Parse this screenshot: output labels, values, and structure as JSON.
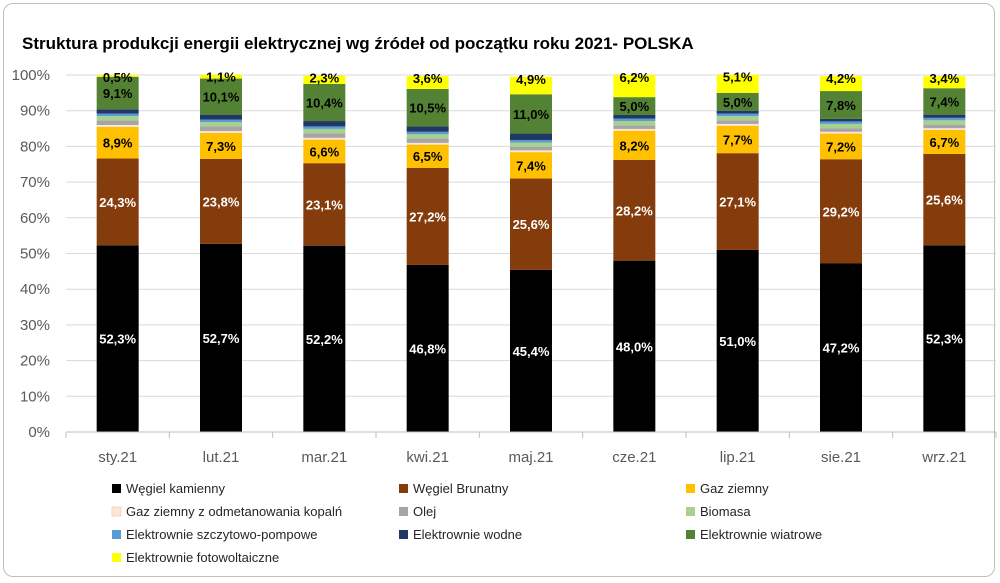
{
  "chart_data": {
    "type": "bar",
    "stacked": true,
    "title": "Struktura produkcji energii elektrycznej wg źródeł od początku roku 2021- POLSKA",
    "xlabel": "",
    "ylabel": "",
    "ylim": [
      0,
      100
    ],
    "y_ticks": [
      "0%",
      "10%",
      "20%",
      "30%",
      "40%",
      "50%",
      "60%",
      "70%",
      "80%",
      "90%",
      "100%"
    ],
    "grid": true,
    "legend_position": "bottom",
    "categories": [
      "sty.21",
      "lut.21",
      "mar.21",
      "kwi.21",
      "maj.21",
      "cze.21",
      "lip.21",
      "sie.21",
      "wrz.21"
    ],
    "series": [
      {
        "name": "Węgiel kamienny",
        "color": "#000000",
        "label_color": "#ffffff",
        "show_labels": true,
        "values": [
          52.3,
          52.7,
          52.2,
          46.8,
          45.4,
          48.0,
          51.0,
          47.2,
          52.3
        ],
        "labels": [
          "52,3%",
          "52,7%",
          "52,2%",
          "46,8%",
          "45,4%",
          "48,0%",
          "51,0%",
          "47,2%",
          "52,3%"
        ]
      },
      {
        "name": "Węgiel Brunatny",
        "color": "#843c0c",
        "label_color": "#ffffff",
        "show_labels": true,
        "values": [
          24.3,
          23.8,
          23.1,
          27.2,
          25.6,
          28.2,
          27.1,
          29.2,
          25.6
        ],
        "labels": [
          "24,3%",
          "23,8%",
          "23,1%",
          "27,2%",
          "25,6%",
          "28,2%",
          "27,1%",
          "29,2%",
          "25,6%"
        ]
      },
      {
        "name": "Gaz  ziemny",
        "color": "#ffc000",
        "label_color": "#000000",
        "show_labels": true,
        "values": [
          8.9,
          7.3,
          6.6,
          6.5,
          7.4,
          8.2,
          7.7,
          7.2,
          6.7
        ],
        "labels": [
          "8,9%",
          "7,3%",
          "6,6%",
          "6,5%",
          "7,4%",
          "8,2%",
          "7,7%",
          "7,2%",
          "6,7%"
        ]
      },
      {
        "name": "Gaz ziemny z odmetanowania kopalń",
        "color": "#fbe5d6",
        "show_labels": false,
        "values": [
          0.5,
          0.5,
          0.5,
          0.5,
          0.5,
          0.5,
          0.5,
          0.5,
          0.5
        ]
      },
      {
        "name": "Olej",
        "color": "#a5a5a5",
        "show_labels": false,
        "values": [
          1.3,
          1.3,
          1.3,
          1.2,
          1.0,
          1.0,
          1.0,
          1.0,
          1.0
        ]
      },
      {
        "name": "Biomasa",
        "color": "#a9d18e",
        "show_labels": false,
        "values": [
          1.2,
          1.2,
          1.2,
          1.2,
          1.2,
          1.2,
          1.2,
          1.2,
          1.2
        ]
      },
      {
        "name": "Elektrownie szczytowo-pompowe",
        "color": "#5b9bd5",
        "show_labels": false,
        "values": [
          0.7,
          0.7,
          0.7,
          0.7,
          0.7,
          0.7,
          0.7,
          0.7,
          0.7
        ]
      },
      {
        "name": "Elektrownie wodne",
        "color": "#1f3864",
        "show_labels": false,
        "values": [
          1.2,
          1.4,
          1.5,
          1.5,
          1.8,
          1.0,
          0.8,
          0.7,
          0.9
        ]
      },
      {
        "name": "Elektrownie wiatrowe",
        "color": "#548235",
        "label_color": "#000000",
        "show_labels": true,
        "values": [
          9.1,
          10.1,
          10.4,
          10.5,
          11.0,
          5.0,
          5.0,
          7.8,
          7.4
        ],
        "labels": [
          "9,1%",
          "10,1%",
          "10,4%",
          "10,5%",
          "11,0%",
          "5,0%",
          "5,0%",
          "7,8%",
          "7,4%"
        ]
      },
      {
        "name": "Elektrownie fotowoltaiczne",
        "color": "#ffff00",
        "label_color": "#000000",
        "show_labels": true,
        "values": [
          0.5,
          1.1,
          2.3,
          3.6,
          4.9,
          6.2,
          5.1,
          4.2,
          3.4
        ],
        "labels": [
          "0,5%",
          "1,1%",
          "2,3%",
          "3,6%",
          "4,9%",
          "6,2%",
          "5,1%",
          "4,2%",
          "3,4%"
        ]
      }
    ]
  }
}
